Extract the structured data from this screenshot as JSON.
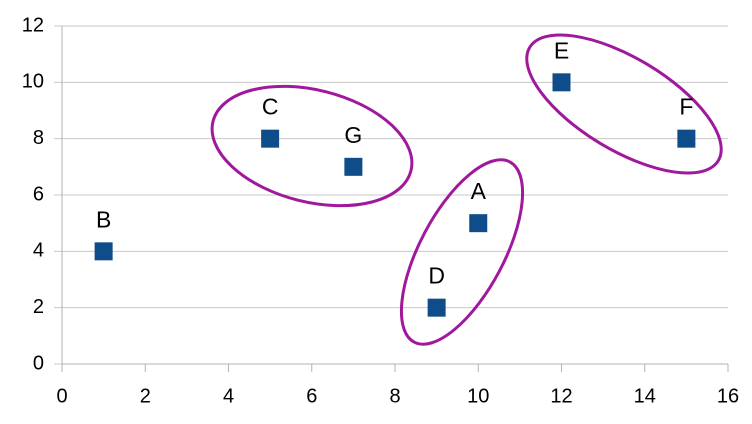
{
  "chart_data": {
    "type": "scatter",
    "x": [
      10,
      1,
      5,
      9,
      12,
      15,
      7
    ],
    "values": [
      5,
      4,
      8,
      2,
      10,
      8,
      7
    ],
    "labels": [
      "A",
      "B",
      "C",
      "D",
      "E",
      "F",
      "G"
    ],
    "color": "#0e4d8a",
    "xlim": [
      0,
      16
    ],
    "xticks": [
      0,
      2,
      4,
      6,
      8,
      10,
      12,
      14,
      16
    ],
    "ylim": [
      0,
      12
    ],
    "yticks": [
      0,
      2,
      4,
      6,
      8,
      10,
      12
    ],
    "grid": true
  }
}
